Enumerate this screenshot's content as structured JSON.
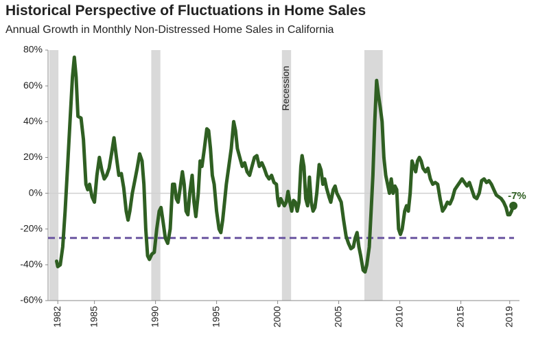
{
  "chart_data": {
    "type": "line",
    "title": "Historical Perspective of Fluctuations in Home Sales",
    "subtitle": "Annual Growth in Monthly Non-Distressed Home Sales in California",
    "color": "#2f5f22",
    "x": [
      1981.9,
      1982.0,
      1982.2,
      1982.4,
      1982.6,
      1982.8,
      1983.0,
      1983.2,
      1983.35,
      1983.5,
      1983.65,
      1983.9,
      1984.1,
      1984.3,
      1984.45,
      1984.6,
      1984.8,
      1985.0,
      1985.2,
      1985.4,
      1985.6,
      1985.8,
      1986.0,
      1986.2,
      1986.4,
      1986.6,
      1986.8,
      1987.0,
      1987.2,
      1987.4,
      1987.6,
      1987.75,
      1987.9,
      1988.1,
      1988.3,
      1988.5,
      1988.7,
      1988.9,
      1989.05,
      1989.2,
      1989.35,
      1989.5,
      1989.7,
      1989.9,
      1990.1,
      1990.3,
      1990.45,
      1990.6,
      1990.8,
      1991.0,
      1991.2,
      1991.4,
      1991.55,
      1991.7,
      1991.85,
      1992.0,
      1992.2,
      1992.35,
      1992.5,
      1992.65,
      1992.8,
      1993.0,
      1993.15,
      1993.3,
      1993.5,
      1993.65,
      1993.8,
      1994.0,
      1994.2,
      1994.35,
      1994.5,
      1994.65,
      1994.8,
      1995.0,
      1995.2,
      1995.35,
      1995.5,
      1995.65,
      1995.8,
      1996.0,
      1996.2,
      1996.4,
      1996.55,
      1996.7,
      1996.9,
      1997.1,
      1997.3,
      1997.5,
      1997.7,
      1997.9,
      1998.1,
      1998.3,
      1998.5,
      1998.7,
      1998.9,
      1999.1,
      1999.3,
      1999.5,
      1999.7,
      1999.9,
      2000.0,
      2000.1,
      2000.25,
      2000.4,
      2000.55,
      2000.7,
      2000.85,
      2001.0,
      2001.15,
      2001.3,
      2001.45,
      2001.6,
      2001.75,
      2001.9,
      2002.0,
      2002.15,
      2002.3,
      2002.45,
      2002.6,
      2002.75,
      2002.9,
      2003.05,
      2003.2,
      2003.4,
      2003.55,
      2003.7,
      2003.85,
      2004.0,
      2004.2,
      2004.35,
      2004.55,
      2004.7,
      2004.85,
      2005.0,
      2005.2,
      2005.4,
      2005.6,
      2005.8,
      2006.0,
      2006.2,
      2006.35,
      2006.5,
      2006.65,
      2006.8,
      2007.0,
      2007.15,
      2007.3,
      2007.5,
      2007.65,
      2007.8,
      2007.95,
      2008.1,
      2008.25,
      2008.4,
      2008.55,
      2008.7,
      2008.85,
      2009.0,
      2009.15,
      2009.3,
      2009.45,
      2009.6,
      2009.75,
      2009.9,
      2010.05,
      2010.2,
      2010.4,
      2010.55,
      2010.7,
      2010.85,
      2011.0,
      2011.15,
      2011.3,
      2011.45,
      2011.6,
      2011.75,
      2011.9,
      2012.1,
      2012.3,
      2012.5,
      2012.7,
      2012.9,
      2013.1,
      2013.3,
      2013.5,
      2013.7,
      2013.9,
      2014.1,
      2014.3,
      2014.5,
      2014.7,
      2014.9,
      2015.1,
      2015.3,
      2015.5,
      2015.7,
      2015.9,
      2016.1,
      2016.3,
      2016.5,
      2016.7,
      2016.9,
      2017.1,
      2017.3,
      2017.5,
      2017.7,
      2017.9,
      2018.1,
      2018.3,
      2018.5,
      2018.7,
      2018.85,
      2019.0,
      2019.15,
      2019.3
    ],
    "values": [
      -38,
      -41,
      -40,
      -30,
      -10,
      15,
      40,
      65,
      76,
      65,
      43,
      42,
      30,
      5,
      2,
      5,
      -2,
      -5,
      10,
      20,
      13,
      8,
      10,
      14,
      22,
      31,
      20,
      10,
      11,
      3,
      -10,
      -15,
      -10,
      0,
      7,
      14,
      22,
      18,
      5,
      -20,
      -35,
      -37,
      -34,
      -33,
      -20,
      -10,
      -8,
      -15,
      -25,
      -28,
      -20,
      5,
      5,
      -3,
      -5,
      2,
      12,
      5,
      -10,
      -12,
      0,
      10,
      -5,
      -13,
      0,
      18,
      15,
      25,
      36,
      35,
      25,
      10,
      5,
      -10,
      -20,
      -22,
      -15,
      -5,
      5,
      15,
      25,
      40,
      35,
      25,
      20,
      15,
      17,
      12,
      10,
      15,
      20,
      21,
      15,
      17,
      14,
      10,
      8,
      10,
      6,
      5,
      -3,
      -7,
      -3,
      -5,
      -7,
      -5,
      1,
      -5,
      -10,
      -4,
      -5,
      -10,
      -5,
      15,
      21,
      15,
      -3,
      -7,
      9,
      -5,
      -10,
      -8,
      0,
      16,
      13,
      5,
      8,
      3,
      -2,
      -5,
      2,
      4,
      0,
      -2,
      -5,
      -15,
      -24,
      -28,
      -31,
      -30,
      -25,
      -22,
      -30,
      -35,
      -43,
      -44,
      -40,
      -30,
      -10,
      10,
      40,
      63,
      55,
      48,
      40,
      20,
      10,
      5,
      0,
      8,
      0,
      4,
      2,
      -20,
      -23,
      -20,
      -10,
      -7,
      -10,
      0,
      18,
      15,
      12,
      18,
      20,
      18,
      14,
      12,
      14,
      8,
      5,
      6,
      5,
      -3,
      -10,
      -8,
      -5,
      -6,
      -3,
      2,
      4,
      6,
      8,
      6,
      4,
      6,
      2,
      -2,
      -3,
      0,
      7,
      8,
      6,
      7,
      5,
      2,
      -1,
      -2,
      -3,
      -5,
      -8,
      -12,
      -12,
      -10,
      -7
    ],
    "end_label": {
      "x": 2019.3,
      "y": -7,
      "text": "-7%"
    },
    "recessions": [
      [
        1981.3,
        1982.05
      ],
      [
        1989.65,
        1990.4
      ],
      [
        2000.35,
        2001.1
      ],
      [
        2007.1,
        2008.6
      ]
    ],
    "recession_label": "Recession",
    "recession_color": "#d9d9d9",
    "reference_line": {
      "value": -25,
      "color": "#6a55a0"
    },
    "xlim": [
      1981.2,
      2019.8
    ],
    "xticks": [
      1982,
      1985,
      1990,
      1995,
      2000,
      2005,
      2010,
      2015,
      2019
    ],
    "ylim": [
      -60,
      80
    ],
    "yticks": [
      {
        "value": -60,
        "label": "-60%"
      },
      {
        "value": -40,
        "label": "-40%"
      },
      {
        "value": -20,
        "label": "-20%"
      },
      {
        "value": 0,
        "label": "0%"
      },
      {
        "value": 20,
        "label": "20%"
      },
      {
        "value": 40,
        "label": "40%"
      },
      {
        "value": 60,
        "label": "60%"
      },
      {
        "value": 80,
        "label": "80%"
      }
    ],
    "zero_line": true,
    "grid": false
  }
}
